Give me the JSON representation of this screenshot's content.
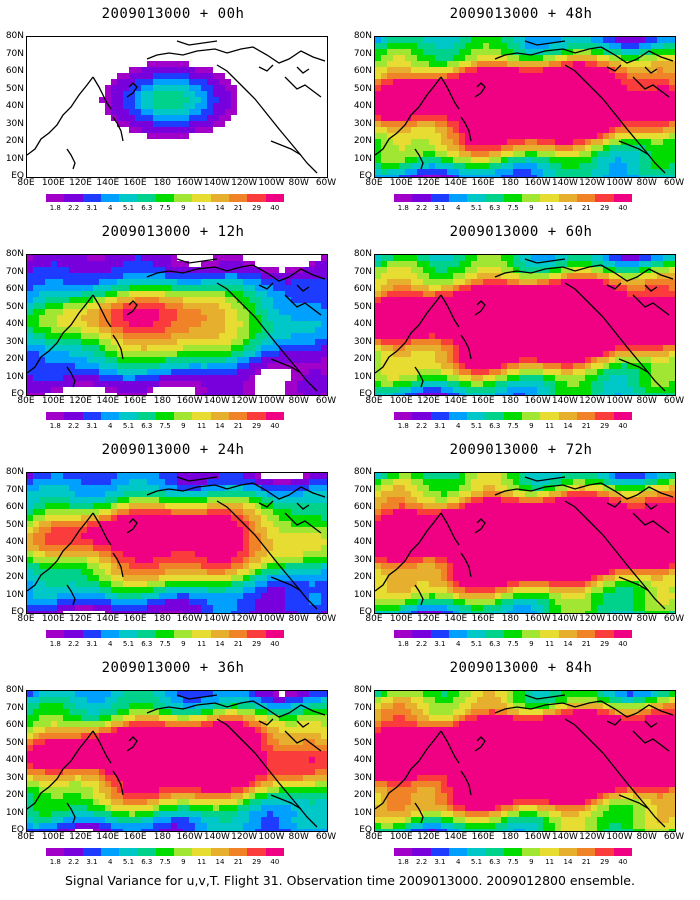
{
  "figure": {
    "caption": "Signal Variance for u,v,T. Flight 31. Observation time 2009013000. 2009012800 ensemble."
  },
  "map_axes": {
    "lat_labels": [
      "80N",
      "70N",
      "60N",
      "50N",
      "40N",
      "30N",
      "20N",
      "10N",
      "EQ"
    ],
    "lon_labels": [
      "80E",
      "100E",
      "120E",
      "140E",
      "160E",
      "180",
      "160W",
      "140W",
      "120W",
      "100W",
      "80W",
      "60W"
    ]
  },
  "colorbar": {
    "labels": [
      "1.8",
      "2.2",
      "3.1",
      "4",
      "5.1",
      "6.3",
      "7.5",
      "9",
      "11",
      "14",
      "21",
      "29",
      "40"
    ],
    "colors": [
      "#a000c8",
      "#7800dc",
      "#1e3cff",
      "#00a0ff",
      "#00c8c8",
      "#00d28c",
      "#00dc00",
      "#a0e632",
      "#e6dc32",
      "#e6af2d",
      "#f08228",
      "#fa3c3c",
      "#f00082"
    ]
  },
  "panels": [
    {
      "title": "2009013000 + 00h",
      "intensity": 0.15
    },
    {
      "title": "2009013000 + 12h",
      "intensity": 0.35
    },
    {
      "title": "2009013000 + 24h",
      "intensity": 0.55
    },
    {
      "title": "2009013000 + 36h",
      "intensity": 0.7
    },
    {
      "title": "2009013000 + 48h",
      "intensity": 0.8
    },
    {
      "title": "2009013000 + 60h",
      "intensity": 0.87
    },
    {
      "title": "2009013000 + 72h",
      "intensity": 0.93
    },
    {
      "title": "2009013000 + 84h",
      "intensity": 1.0
    }
  ]
}
